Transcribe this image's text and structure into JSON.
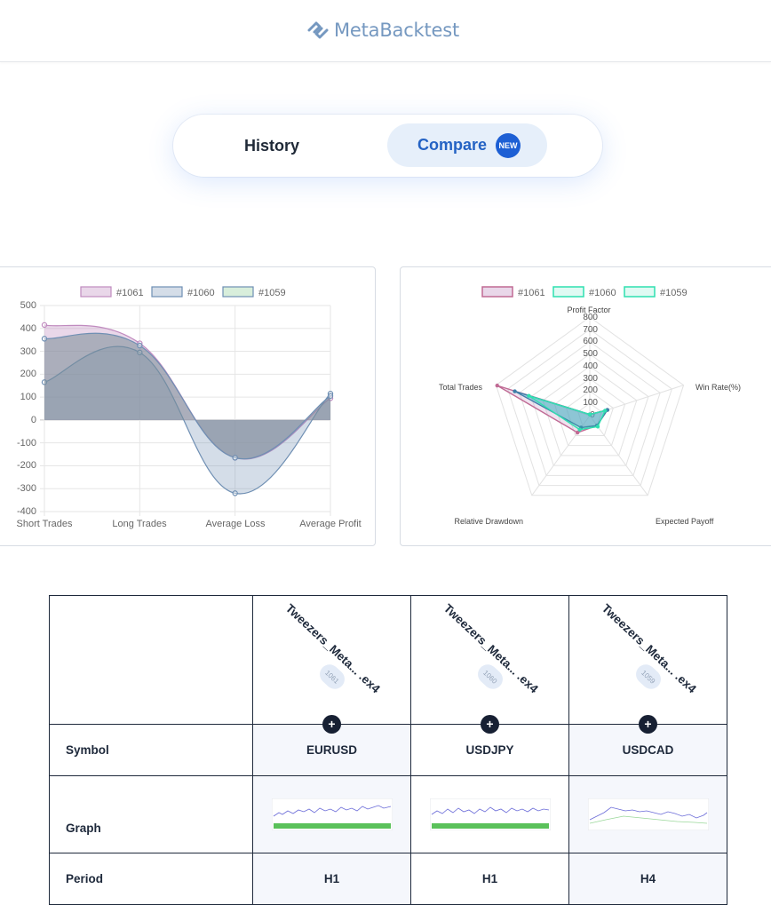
{
  "header": {
    "brand": "MetaBacktest",
    "logo_icon": "logo-icon"
  },
  "nav": {
    "history_label": "History",
    "compare_label": "Compare",
    "badge": "NEW"
  },
  "colors": {
    "accent": "#2563c4",
    "series_1061": "#c08bbf",
    "series_1060": "#6f8fb3",
    "series_1059": "#8fcf98",
    "radar_1060": "#2fe0b0"
  },
  "line_chart": {
    "legend": [
      "#1061",
      "#1060",
      "#1059"
    ],
    "y_ticks": [
      "500",
      "400",
      "300",
      "200",
      "100",
      "0",
      "-100",
      "-200",
      "-300",
      "-400"
    ],
    "categories": [
      "Short Trades",
      "Long Trades",
      "Average Loss",
      "Average Profit"
    ]
  },
  "radar_chart": {
    "legend": [
      "#1061",
      "#1060",
      "#1059"
    ],
    "axes": [
      "Profit Factor",
      "Win Rate(%)",
      "Expected Payoff",
      "Relative Drawdown",
      "Total Trades"
    ],
    "r_ticks": [
      "800",
      "700",
      "600",
      "500",
      "400",
      "300",
      "200",
      "100",
      "0"
    ]
  },
  "chart_data": [
    {
      "type": "area",
      "title": "",
      "categories": [
        "Short Trades",
        "Long Trades",
        "Average Loss",
        "Average Profit"
      ],
      "ylim": [
        -400,
        500
      ],
      "grid": true,
      "legend": "top",
      "series": [
        {
          "name": "#1061",
          "values": [
            415,
            335,
            -165,
            95
          ]
        },
        {
          "name": "#1060",
          "values": [
            165,
            295,
            -320,
            115
          ]
        },
        {
          "name": "#1059",
          "values": [
            355,
            325,
            -165,
            105
          ]
        }
      ]
    },
    {
      "type": "radar",
      "title": "",
      "axes": [
        "Profit Factor",
        "Win Rate(%)",
        "Expected Payoff",
        "Relative Drawdown",
        "Total Trades"
      ],
      "rlim": [
        0,
        800
      ],
      "legend": "top",
      "series": [
        {
          "name": "#1061",
          "values": [
            10,
            150,
            100,
            170,
            790
          ]
        },
        {
          "name": "#1060",
          "values": [
            10,
            130,
            110,
            140,
            520
          ]
        },
        {
          "name": "#1059",
          "values": [
            10,
            150,
            100,
            120,
            640
          ]
        }
      ]
    }
  ],
  "table": {
    "columns": [
      {
        "name": "Tweezers_Meta... .ex4",
        "id": "1061"
      },
      {
        "name": "Tweezers_Meta... .ex4",
        "id": "1060"
      },
      {
        "name": "Tweezers_Meta... .ex4",
        "id": "1059"
      }
    ],
    "add_label": "+",
    "rows": {
      "symbol": {
        "label": "Symbol",
        "values": [
          "EURUSD",
          "USDJPY",
          "USDCAD"
        ]
      },
      "graph": {
        "label": "Graph"
      },
      "period": {
        "label": "Period",
        "values": [
          "H1",
          "H1",
          "H4"
        ]
      }
    }
  }
}
